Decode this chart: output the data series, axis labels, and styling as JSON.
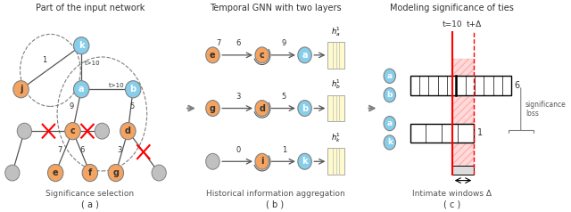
{
  "title_a": "Part of the input network",
  "title_b": "Temporal GNN with two layers",
  "title_c": "Modeling significance of ties",
  "label_a": "( a )",
  "label_b": "( b )",
  "label_c": "( c )",
  "sub_a": "Significance selection",
  "sub_b": "Historical information aggregation",
  "sub_c": "Intimate windows Δ",
  "bg_color": "#ffffff",
  "node_orange": "#F4A460",
  "node_blue": "#87CEEB",
  "node_gray": "#C0C0C0",
  "red_color": "#FF0000"
}
